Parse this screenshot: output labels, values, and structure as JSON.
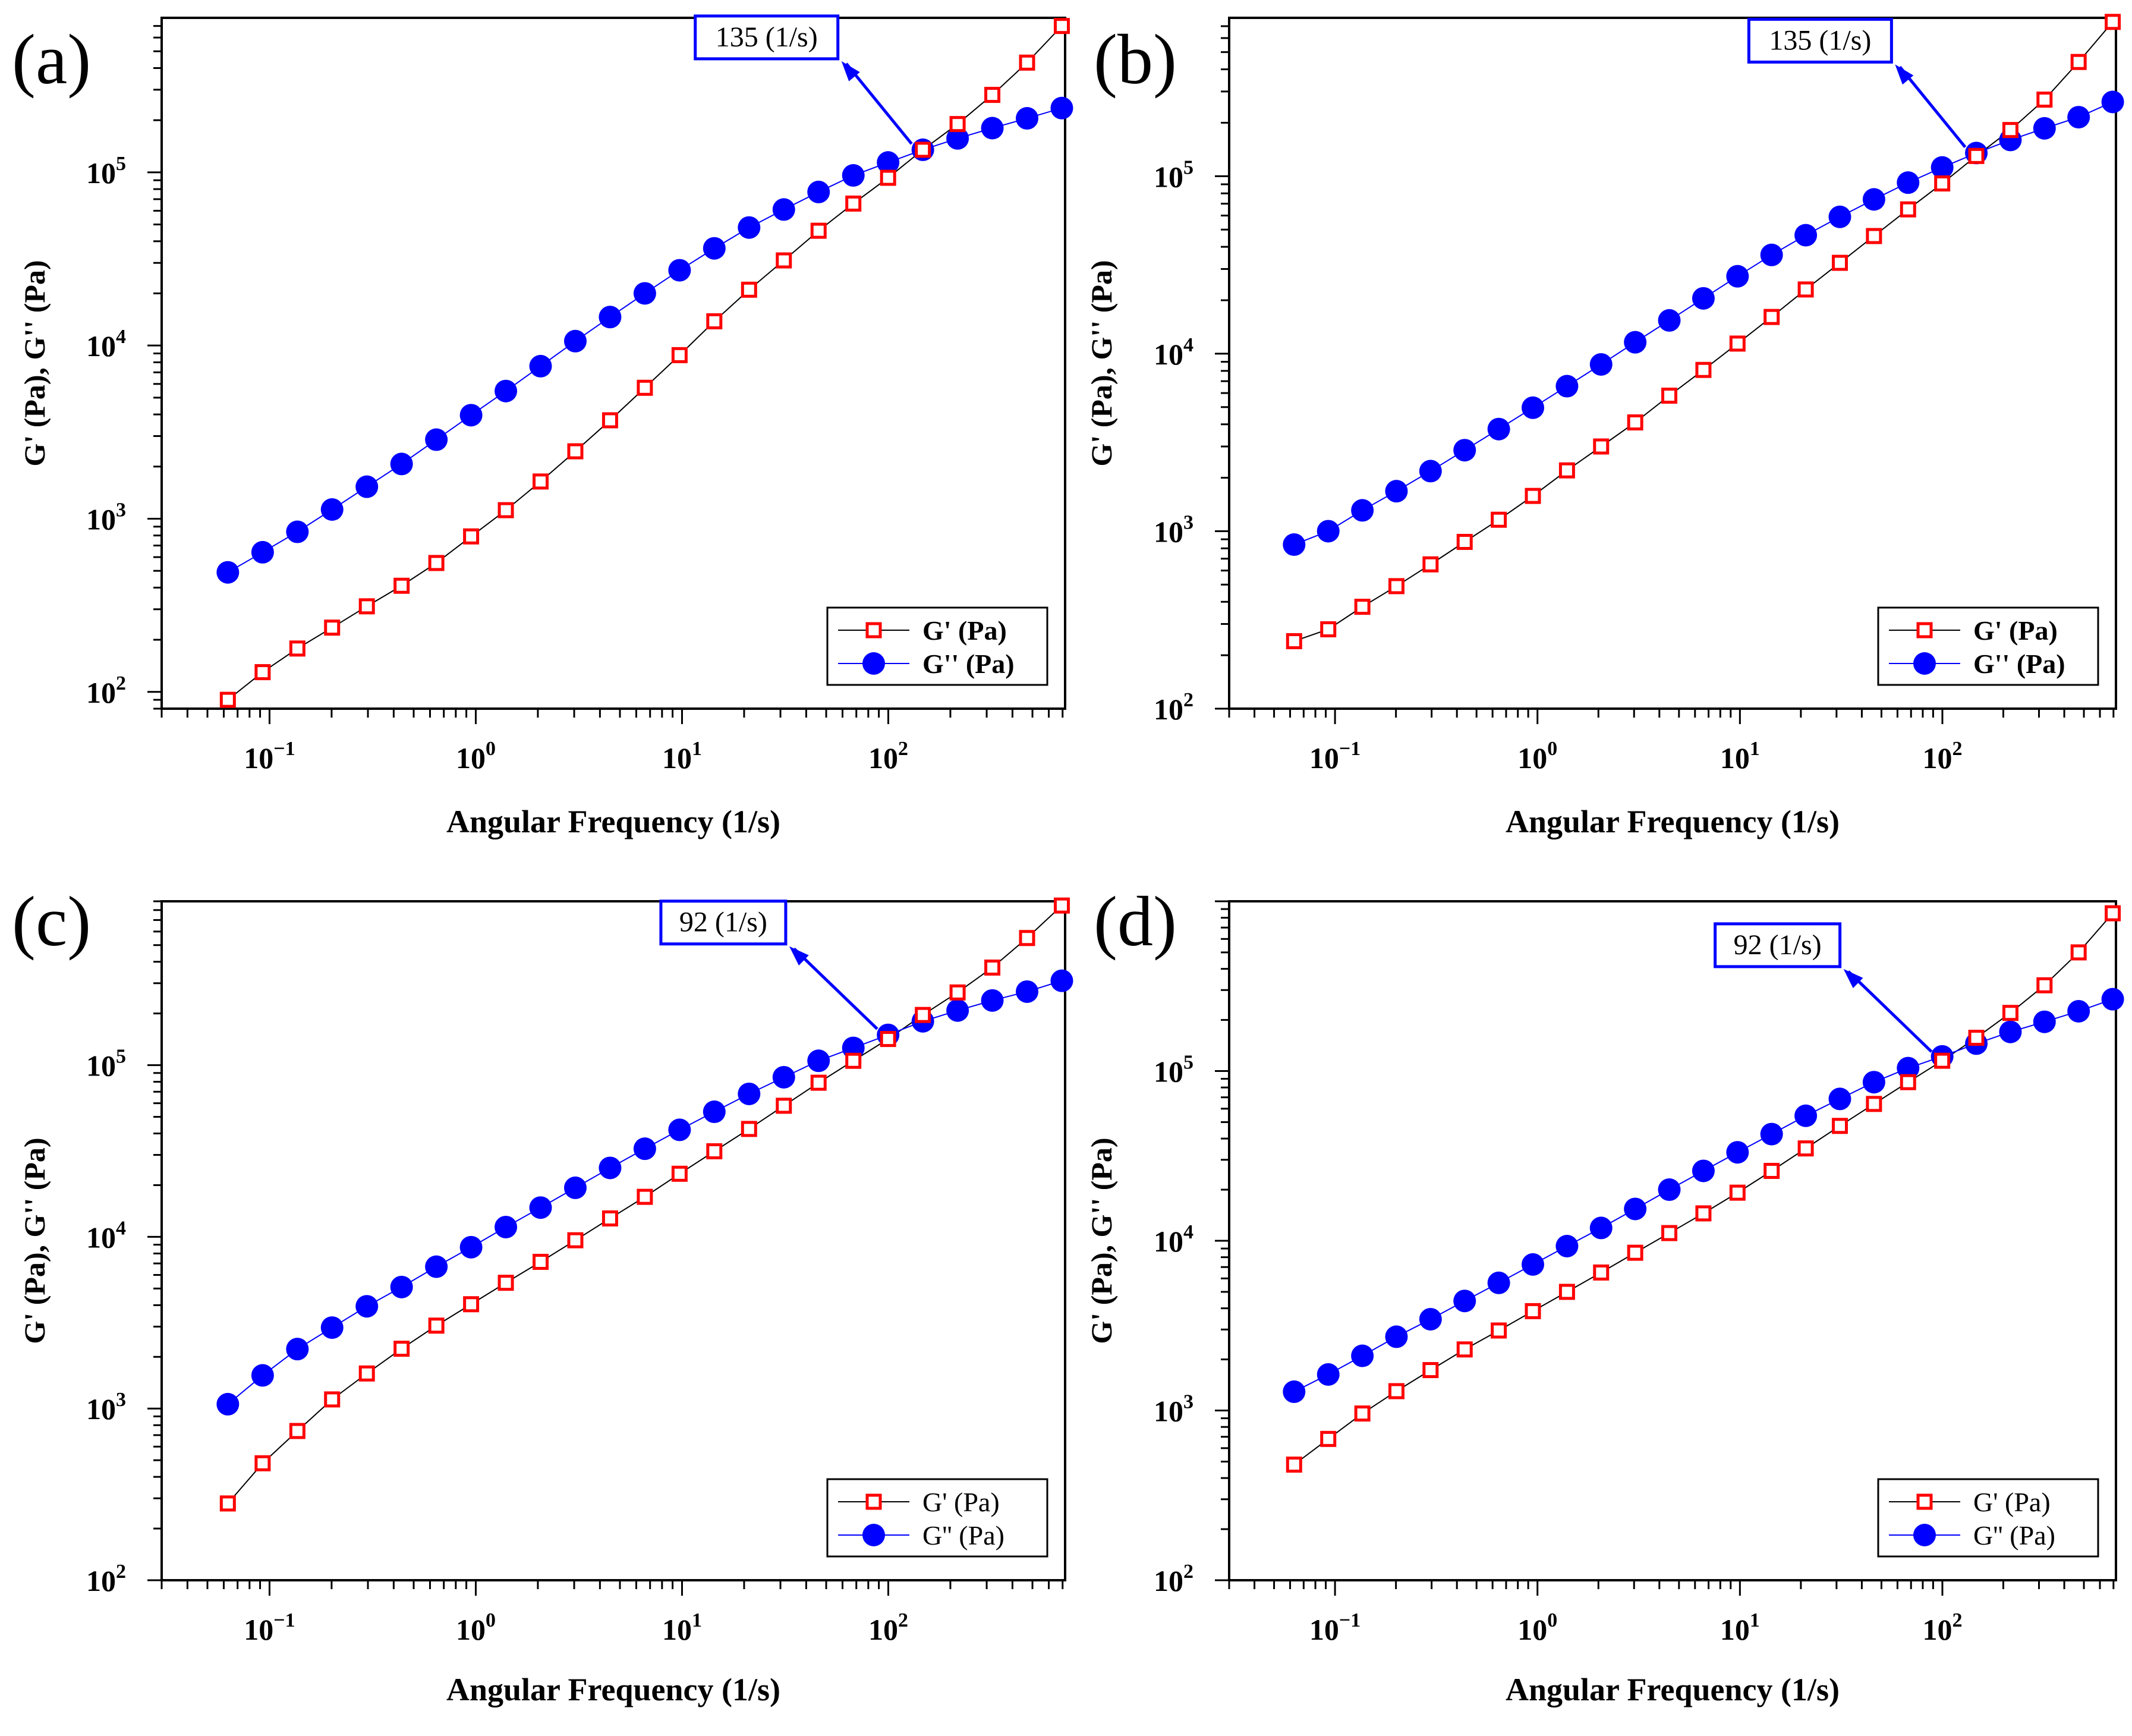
{
  "figure": {
    "panel_letters": [
      "(a)",
      "(b)",
      "(c)",
      "(d)"
    ]
  },
  "colors": {
    "gprime": "#ff0000",
    "gdouble": "#0000ff",
    "annotation": "#0000ff",
    "axis": "#000000"
  },
  "chart_data": [
    {
      "type": "scatter",
      "panel": "(a)",
      "xlabel": "Angular Frequency (1/s)",
      "ylabel": "G' (Pa), G'' (Pa)",
      "xscale": "log",
      "yscale": "log",
      "xlim": [
        0.03,
        720
      ],
      "ylim": [
        80,
        780000
      ],
      "x_ticks": [
        {
          "base": "10",
          "exp": "−1"
        },
        {
          "base": "10",
          "exp": "0"
        },
        {
          "base": "10",
          "exp": "1"
        },
        {
          "base": "10",
          "exp": "2"
        }
      ],
      "y_ticks": [
        {
          "base": "10",
          "exp": "2"
        },
        {
          "base": "10",
          "exp": "3"
        },
        {
          "base": "10",
          "exp": "4"
        },
        {
          "base": "10",
          "exp": "5"
        }
      ],
      "legend": {
        "location": "lower-right",
        "bold": true,
        "entries": [
          "G' (Pa)",
          "G'' (Pa)"
        ]
      },
      "annotation": {
        "text": "135 (1/s)",
        "x": 135,
        "y": 135000
      },
      "series": [
        {
          "name": "G' (Pa)",
          "marker": "open-square",
          "color": "#ff0000",
          "x": [
            0.0628,
            0.0926,
            0.1365,
            0.2011,
            0.2964,
            0.4369,
            0.644,
            0.9492,
            1.399,
            2.062,
            3.039,
            4.479,
            6.602,
            9.731,
            14.34,
            21.14,
            31.16,
            45.93,
            67.7,
            99.79,
            147.1,
            216.8,
            319.5,
            470.9,
            694.1
          ],
          "values": [
            90,
            130,
            178,
            235,
            312,
            410,
            555,
            790,
            1120,
            1640,
            2450,
            3700,
            5700,
            8800,
            13800,
            21000,
            31000,
            46000,
            66000,
            93000,
            135000,
            190000,
            280000,
            430000,
            700000
          ]
        },
        {
          "name": "G'' (Pa)",
          "marker": "filled-circle",
          "color": "#0000ff",
          "x": [
            0.0628,
            0.0926,
            0.1365,
            0.2011,
            0.2964,
            0.4369,
            0.644,
            0.9492,
            1.399,
            2.062,
            3.039,
            4.479,
            6.602,
            9.731,
            14.34,
            21.14,
            31.16,
            45.93,
            67.7,
            99.79,
            147.1,
            216.8,
            319.5,
            470.9,
            694.1
          ],
          "values": [
            490,
            640,
            840,
            1130,
            1530,
            2070,
            2860,
            3960,
            5460,
            7600,
            10600,
            14600,
            20000,
            27200,
            36400,
            48000,
            61000,
            77000,
            96000,
            114000,
            135000,
            157000,
            180000,
            205000,
            235000
          ]
        }
      ]
    },
    {
      "type": "scatter",
      "panel": "(b)",
      "xlabel": "Angular Frequency (1/s)",
      "ylabel": "G' (Pa), G'' (Pa)",
      "xscale": "log",
      "yscale": "log",
      "xlim": [
        0.03,
        720
      ],
      "ylim": [
        100,
        780000
      ],
      "x_ticks": [
        {
          "base": "10",
          "exp": "−1"
        },
        {
          "base": "10",
          "exp": "0"
        },
        {
          "base": "10",
          "exp": "1"
        },
        {
          "base": "10",
          "exp": "2"
        }
      ],
      "y_ticks": [
        {
          "base": "10",
          "exp": "2"
        },
        {
          "base": "10",
          "exp": "3"
        },
        {
          "base": "10",
          "exp": "4"
        },
        {
          "base": "10",
          "exp": "5"
        }
      ],
      "legend": {
        "location": "lower-right",
        "bold": true,
        "entries": [
          "G' (Pa)",
          "G'' (Pa)"
        ]
      },
      "annotation": {
        "text": "135 (1/s)",
        "x": 135,
        "y": 135000
      },
      "series": [
        {
          "name": "G' (Pa)",
          "marker": "open-square",
          "color": "#ff0000",
          "x": [
            0.0628,
            0.0926,
            0.1365,
            0.2011,
            0.2964,
            0.4369,
            0.644,
            0.9492,
            1.399,
            2.062,
            3.039,
            4.479,
            6.602,
            9.731,
            14.34,
            21.14,
            31.16,
            45.93,
            67.7,
            99.79,
            147.1,
            216.8,
            319.5,
            470.9,
            694.1
          ],
          "values": [
            240,
            280,
            375,
            490,
            650,
            870,
            1160,
            1580,
            2200,
            3000,
            4100,
            5800,
            8100,
            11400,
            16100,
            23000,
            32500,
            46000,
            65000,
            91000,
            130000,
            182000,
            270000,
            440000,
            740000
          ]
        },
        {
          "name": "G'' (Pa)",
          "marker": "filled-circle",
          "color": "#0000ff",
          "x": [
            0.0628,
            0.0926,
            0.1365,
            0.2011,
            0.2964,
            0.4369,
            0.644,
            0.9492,
            1.399,
            2.062,
            3.039,
            4.479,
            6.602,
            9.731,
            14.34,
            21.14,
            31.16,
            45.93,
            67.7,
            99.79,
            147.1,
            216.8,
            319.5,
            470.9,
            694.1
          ],
          "values": [
            840,
            1000,
            1310,
            1680,
            2180,
            2860,
            3760,
            4960,
            6560,
            8700,
            11600,
            15400,
            20500,
            27300,
            36000,
            46500,
            59000,
            74000,
            92000,
            112000,
            135000,
            160000,
            186000,
            215000,
            262000
          ]
        }
      ]
    },
    {
      "type": "scatter",
      "panel": "(c)",
      "xlabel": "Angular Frequency (1/s)",
      "ylabel": "G' (Pa), G'' (Pa)",
      "xscale": "log",
      "yscale": "log",
      "xlim": [
        0.03,
        720
      ],
      "ylim": [
        100,
        900000
      ],
      "x_ticks": [
        {
          "base": "10",
          "exp": "−1"
        },
        {
          "base": "10",
          "exp": "0"
        },
        {
          "base": "10",
          "exp": "1"
        },
        {
          "base": "10",
          "exp": "2"
        }
      ],
      "y_ticks": [
        {
          "base": "10",
          "exp": "2"
        },
        {
          "base": "10",
          "exp": "3"
        },
        {
          "base": "10",
          "exp": "4"
        },
        {
          "base": "10",
          "exp": "5"
        }
      ],
      "legend": {
        "location": "lower-right",
        "bold": false,
        "entries": [
          "G' (Pa)",
          "G'' (Pa)"
        ]
      },
      "annotation": {
        "text": "92 (1/s)",
        "x": 92,
        "y": 150000
      },
      "series": [
        {
          "name": "G' (Pa)",
          "marker": "open-square",
          "color": "#ff0000",
          "x": [
            0.0628,
            0.0926,
            0.1365,
            0.2011,
            0.2964,
            0.4369,
            0.644,
            0.9492,
            1.399,
            2.062,
            3.039,
            4.479,
            6.602,
            9.731,
            14.34,
            21.14,
            31.16,
            45.93,
            67.7,
            99.79,
            147.1,
            216.8,
            319.5,
            470.9,
            694.1
          ],
          "values": [
            280,
            480,
            740,
            1130,
            1600,
            2230,
            3040,
            4050,
            5400,
            7150,
            9550,
            12800,
            17100,
            23300,
            31500,
            42500,
            58000,
            79000,
            106000,
            142000,
            196000,
            265000,
            370000,
            550000,
            850000
          ]
        },
        {
          "name": "G'' (Pa)",
          "marker": "filled-circle",
          "color": "#0000ff",
          "x": [
            0.0628,
            0.0926,
            0.1365,
            0.2011,
            0.2964,
            0.4369,
            0.644,
            0.9492,
            1.399,
            2.062,
            3.039,
            4.479,
            6.602,
            9.731,
            14.34,
            21.14,
            31.16,
            45.93,
            67.7,
            99.79,
            147.1,
            216.8,
            319.5,
            470.9,
            694.1
          ],
          "values": [
            1060,
            1560,
            2220,
            2960,
            3940,
            5100,
            6700,
            8700,
            11400,
            14800,
            19300,
            25200,
            32600,
            42000,
            53500,
            68000,
            85000,
            106000,
            126000,
            150000,
            180000,
            208000,
            238000,
            268000,
            310000
          ]
        }
      ]
    },
    {
      "type": "scatter",
      "panel": "(d)",
      "xlabel": "Angular Frequency (1/s)",
      "ylabel": "G' (Pa), G'' (Pa)",
      "xscale": "log",
      "yscale": "log",
      "xlim": [
        0.03,
        720
      ],
      "ylim": [
        100,
        1000000
      ],
      "x_ticks": [
        {
          "base": "10",
          "exp": "−1"
        },
        {
          "base": "10",
          "exp": "0"
        },
        {
          "base": "10",
          "exp": "1"
        },
        {
          "base": "10",
          "exp": "2"
        }
      ],
      "y_ticks": [
        {
          "base": "10",
          "exp": "2"
        },
        {
          "base": "10",
          "exp": "3"
        },
        {
          "base": "10",
          "exp": "4"
        },
        {
          "base": "10",
          "exp": "5"
        }
      ],
      "legend": {
        "location": "lower-right",
        "bold": false,
        "entries": [
          "G' (Pa)",
          "G'' (Pa)"
        ]
      },
      "annotation": {
        "text": "92 (1/s)",
        "x": 92,
        "y": 120000
      },
      "series": [
        {
          "name": "G' (Pa)",
          "marker": "open-square",
          "color": "#ff0000",
          "x": [
            0.0628,
            0.0926,
            0.1365,
            0.2011,
            0.2964,
            0.4369,
            0.644,
            0.9492,
            1.399,
            2.062,
            3.039,
            4.479,
            6.602,
            9.731,
            14.34,
            21.14,
            31.16,
            45.93,
            67.7,
            99.79,
            147.1,
            216.8,
            319.5,
            470.9,
            694.1
          ],
          "values": [
            480,
            680,
            960,
            1300,
            1730,
            2290,
            2960,
            3850,
            5000,
            6500,
            8500,
            11100,
            14500,
            19200,
            25800,
            35000,
            47500,
            64000,
            86000,
            115000,
            157000,
            220000,
            320000,
            500000,
            850000
          ]
        },
        {
          "name": "G'' (Pa)",
          "marker": "filled-circle",
          "color": "#0000ff",
          "x": [
            0.0628,
            0.0926,
            0.1365,
            0.2011,
            0.2964,
            0.4369,
            0.644,
            0.9492,
            1.399,
            2.062,
            3.039,
            4.479,
            6.602,
            9.731,
            14.34,
            21.14,
            31.16,
            45.93,
            67.7,
            99.79,
            147.1,
            216.8,
            319.5,
            470.9,
            694.1
          ],
          "values": [
            1290,
            1630,
            2100,
            2720,
            3450,
            4420,
            5650,
            7250,
            9300,
            11900,
            15400,
            20000,
            25800,
            33200,
            42500,
            54500,
            68500,
            86000,
            104000,
            122000,
            145000,
            170000,
            195000,
            225000,
            265000
          ]
        }
      ]
    }
  ]
}
